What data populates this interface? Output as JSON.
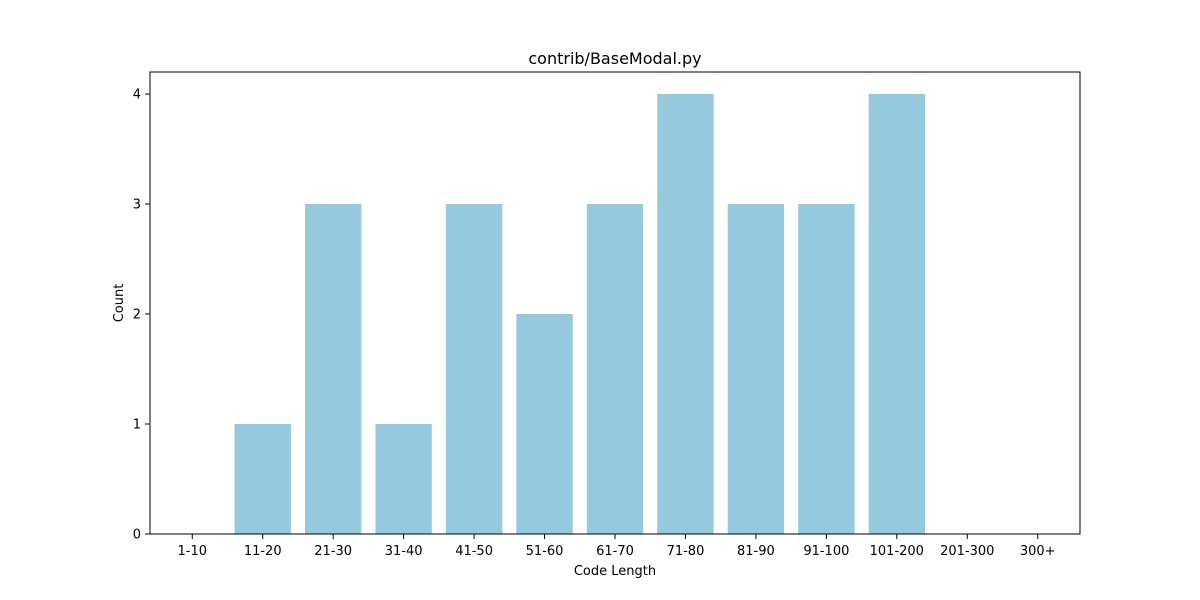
{
  "chart_data": {
    "type": "bar",
    "title": "contrib/BaseModal.py",
    "xlabel": "Code Length",
    "ylabel": "Count",
    "categories": [
      "1-10",
      "11-20",
      "21-30",
      "31-40",
      "41-50",
      "51-60",
      "61-70",
      "71-80",
      "81-90",
      "91-100",
      "101-200",
      "201-300",
      "300+"
    ],
    "values": [
      0,
      1,
      3,
      1,
      3,
      2,
      3,
      4,
      3,
      3,
      4,
      0,
      0
    ],
    "ylim": [
      0,
      4.2
    ],
    "yticks": [
      "0",
      "1",
      "2",
      "3",
      "4"
    ],
    "bar_color": "#96c9dd",
    "grid": false,
    "legend": "none"
  }
}
